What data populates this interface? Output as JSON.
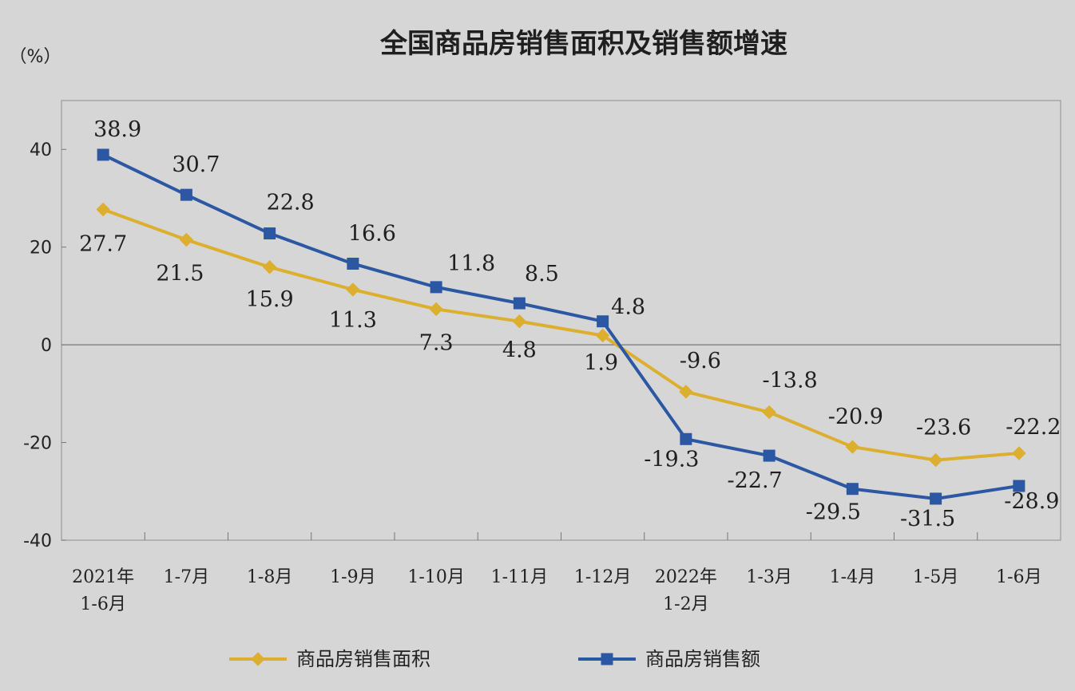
{
  "chart_data": {
    "type": "line",
    "title": "全国商品房销售面积及销售额增速",
    "ylabel": "（%）",
    "xlabel": "",
    "ylim": [
      -40,
      50
    ],
    "yticks": [
      40,
      20,
      0,
      -20,
      -40
    ],
    "grid": false,
    "legend_position": "bottom",
    "categories": [
      "2021年\n1-6月",
      "1-7月",
      "1-8月",
      "1-9月",
      "1-10月",
      "1-11月",
      "1-12月",
      "2022年\n1-2月",
      "1-3月",
      "1-4月",
      "1-5月",
      "1-6月"
    ],
    "series": [
      {
        "name": "商品房销售面积",
        "color": "#dcaf2f",
        "marker": "diamond",
        "values": [
          27.7,
          21.5,
          15.9,
          11.3,
          7.3,
          4.8,
          1.9,
          -9.6,
          -13.8,
          -20.9,
          -23.6,
          -22.2
        ],
        "labels": [
          "27.7",
          "21.5",
          "15.9",
          "11.3",
          "7.3",
          "4.8",
          "1.9",
          "-9.6",
          "-13.8",
          "-20.9",
          "-23.6",
          "-22.2"
        ]
      },
      {
        "name": "商品房销售额",
        "color": "#2b57a3",
        "marker": "square",
        "values": [
          38.9,
          30.7,
          22.8,
          16.6,
          11.8,
          8.5,
          4.8,
          -19.3,
          -22.7,
          -29.5,
          -31.5,
          -28.9
        ],
        "labels": [
          "38.9",
          "30.7",
          "22.8",
          "16.6",
          "11.8",
          "8.5",
          "4.8",
          "-19.3",
          "-22.7",
          "-29.5",
          "-31.5",
          "-28.9"
        ]
      }
    ]
  }
}
